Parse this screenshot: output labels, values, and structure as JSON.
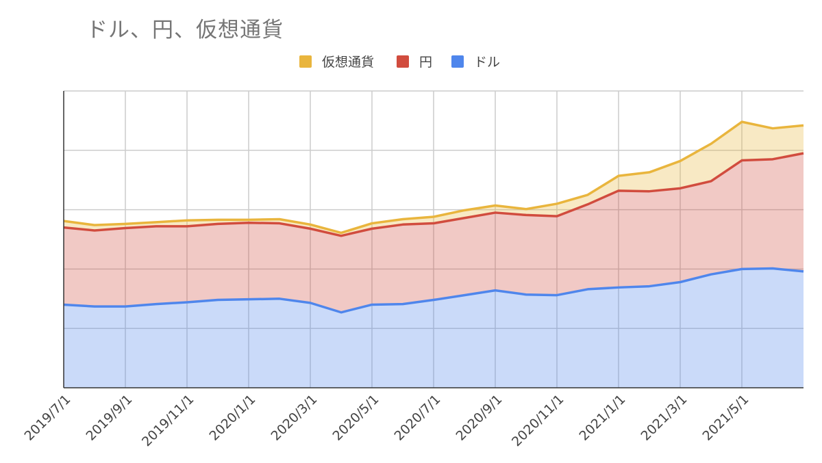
{
  "chart_data": {
    "type": "area",
    "stacked": true,
    "title": "ドル、円、仮想通貨",
    "xlabel": "",
    "ylabel": "",
    "legend": {
      "placement": "top"
    },
    "grid": true,
    "x_tick_labels": [
      "2019/7/1",
      "2019/9/1",
      "2019/11/1",
      "2020/1/1",
      "2020/3/1",
      "2020/5/1",
      "2020/7/1",
      "2020/9/1",
      "2020/11/1",
      "2021/1/1",
      "2021/3/1",
      "2021/5/1"
    ],
    "x": [
      "2019/7/1",
      "2019/8/1",
      "2019/9/1",
      "2019/10/1",
      "2019/11/1",
      "2019/12/1",
      "2020/1/1",
      "2020/2/1",
      "2020/3/1",
      "2020/4/1",
      "2020/5/1",
      "2020/6/1",
      "2020/7/1",
      "2020/8/1",
      "2020/9/1",
      "2020/10/1",
      "2020/11/1",
      "2020/12/1",
      "2021/1/1",
      "2021/2/1",
      "2021/3/1",
      "2021/4/1",
      "2021/5/1",
      "2021/6/1",
      "2021/7/1"
    ],
    "ylim": [
      0,
      5
    ],
    "series": [
      {
        "name": "ドル",
        "color": "#4f86ec",
        "values": [
          1.4,
          1.37,
          1.37,
          1.41,
          1.44,
          1.48,
          1.49,
          1.5,
          1.43,
          1.27,
          1.4,
          1.41,
          1.48,
          1.56,
          1.64,
          1.57,
          1.56,
          1.66,
          1.69,
          1.71,
          1.78,
          1.91,
          2.0,
          2.01,
          1.96
        ]
      },
      {
        "name": "円",
        "color": "#d14c3e",
        "values": [
          1.3,
          1.28,
          1.32,
          1.31,
          1.28,
          1.28,
          1.29,
          1.27,
          1.25,
          1.29,
          1.28,
          1.34,
          1.29,
          1.3,
          1.31,
          1.34,
          1.33,
          1.43,
          1.63,
          1.6,
          1.58,
          1.57,
          1.83,
          1.84,
          1.99
        ]
      },
      {
        "name": "仮想通貨",
        "color": "#e9b53d",
        "values": [
          0.11,
          0.09,
          0.07,
          0.07,
          0.1,
          0.07,
          0.05,
          0.07,
          0.07,
          0.05,
          0.09,
          0.09,
          0.11,
          0.13,
          0.12,
          0.1,
          0.21,
          0.16,
          0.25,
          0.32,
          0.46,
          0.63,
          0.65,
          0.52,
          0.47
        ]
      }
    ]
  }
}
